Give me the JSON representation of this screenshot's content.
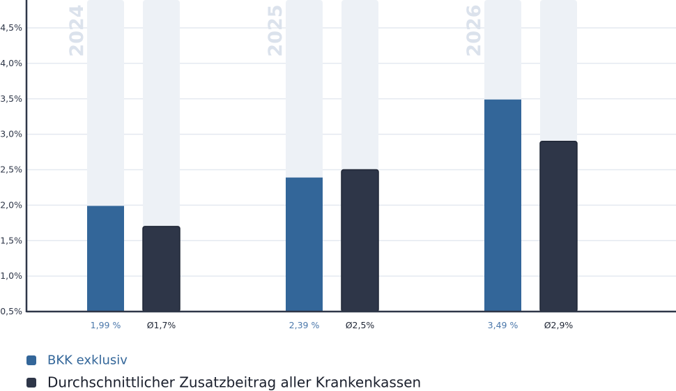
{
  "chart_data": {
    "type": "bar",
    "categories": [
      "2024",
      "2025",
      "2026"
    ],
    "series": [
      {
        "name": "BKK exklusiv",
        "values": [
          1.99,
          2.39,
          3.49
        ],
        "labels": [
          "1,99 %",
          "2,39 %",
          "3,49 %"
        ],
        "color": "#336699"
      },
      {
        "name": "Durchschnittlicher Zusatzbeitrag aller Krankenkassen",
        "values": [
          1.7,
          2.5,
          2.9
        ],
        "labels": [
          "Ø1,7%",
          "Ø2,5%",
          "Ø2,9%"
        ],
        "color": "#2e3648"
      }
    ],
    "yticks": [
      0.5,
      1.0,
      1.5,
      2.0,
      2.5,
      3.0,
      3.5,
      4.0,
      4.5
    ],
    "ytick_labels": [
      "0,5%",
      "1,0%",
      "1,5%",
      "2,0%",
      "2,5%",
      "3,0%",
      "3,5%",
      "4,0%",
      "4,5%"
    ],
    "ylim": [
      0.5,
      4.9
    ],
    "grid": true,
    "legend_placement": "bottom-left",
    "background_bar_color": "#edf1f6",
    "year_label_color": "#dbe2ec",
    "grid_color": "#e4e9f0",
    "axis_color": "#2e3648"
  },
  "legend": [
    {
      "label": "BKK exklusiv",
      "color": "#336699"
    },
    {
      "label": "Durchschnittlicher Zusatzbeitrag aller Krankenkassen",
      "color": "#2e3648"
    }
  ]
}
